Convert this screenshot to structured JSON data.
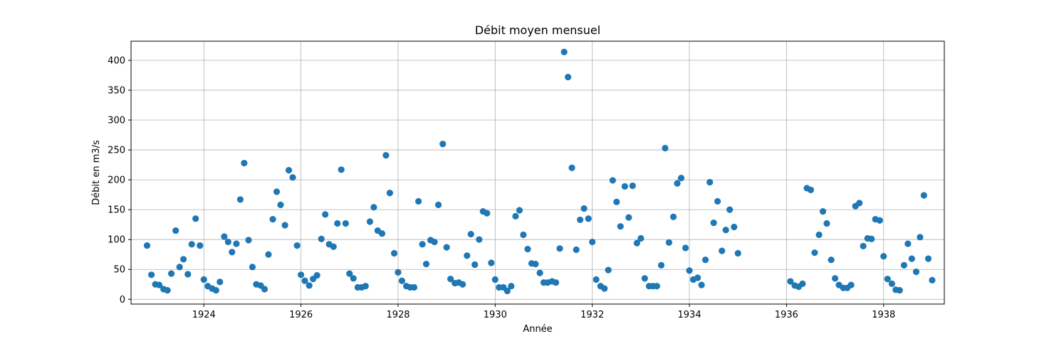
{
  "chart_data": {
    "type": "scatter",
    "title": "Débit moyen mensuel",
    "xlabel": "Année",
    "ylabel": "Débit en m3/s",
    "xlim": [
      1922.5,
      1939.25
    ],
    "ylim": [
      -8,
      432
    ],
    "x_ticks": [
      1924,
      1926,
      1928,
      1930,
      1932,
      1934,
      1936,
      1938
    ],
    "y_ticks": [
      0,
      50,
      100,
      150,
      200,
      250,
      300,
      350,
      400
    ],
    "grid": true,
    "marker_color": "#1f77b4",
    "series": [
      {
        "x": [
          1922.83,
          1922.92,
          1923.0,
          1923.08,
          1923.17,
          1923.25,
          1923.33,
          1923.42,
          1923.5,
          1923.58,
          1923.67,
          1923.75,
          1923.83,
          1923.92,
          1924.0,
          1924.08,
          1924.17,
          1924.25,
          1924.33,
          1924.42,
          1924.5,
          1924.58,
          1924.67,
          1924.75,
          1924.83,
          1924.92,
          1925.0,
          1925.08,
          1925.17,
          1925.25,
          1925.33,
          1925.42,
          1925.5,
          1925.58,
          1925.67,
          1925.75,
          1925.83,
          1925.92,
          1926.0,
          1926.08,
          1926.17,
          1926.25,
          1926.33,
          1926.42,
          1926.5,
          1926.58,
          1926.67,
          1926.75,
          1926.83,
          1926.92,
          1927.0,
          1927.08,
          1927.17,
          1927.25,
          1927.33,
          1927.42,
          1927.5,
          1927.58,
          1927.67,
          1927.75,
          1927.83,
          1927.92,
          1928.0,
          1928.08,
          1928.17,
          1928.25,
          1928.33,
          1928.42,
          1928.5,
          1928.58,
          1928.67,
          1928.75,
          1928.83,
          1928.92,
          1929.0,
          1929.08,
          1929.17,
          1929.25,
          1929.33,
          1929.42,
          1929.5,
          1929.58,
          1929.67,
          1929.75,
          1929.83,
          1929.92,
          1930.0,
          1930.08,
          1930.17,
          1930.25,
          1930.33,
          1930.42,
          1930.5,
          1930.58,
          1930.67,
          1930.75,
          1930.83,
          1930.92,
          1931.0,
          1931.08,
          1931.17,
          1931.25,
          1931.33,
          1931.42,
          1931.5,
          1931.58,
          1931.67,
          1931.75,
          1931.83,
          1931.92,
          1932.0,
          1932.08,
          1932.17,
          1932.25,
          1932.33,
          1932.42,
          1932.5,
          1932.58,
          1932.67,
          1932.75,
          1932.83,
          1932.92,
          1933.0,
          1933.08,
          1933.17,
          1933.25,
          1933.33,
          1933.42,
          1933.5,
          1933.58,
          1933.67,
          1933.75,
          1933.83,
          1933.92,
          1934.0,
          1934.08,
          1934.17,
          1934.25,
          1934.33,
          1934.42,
          1934.5,
          1934.58,
          1934.67,
          1934.75,
          1934.83,
          1934.92,
          1935.0,
          1936.08,
          1936.17,
          1936.25,
          1936.33,
          1936.42,
          1936.5,
          1936.58,
          1936.67,
          1936.75,
          1936.83,
          1936.92,
          1937.0,
          1937.08,
          1937.17,
          1937.25,
          1937.33,
          1937.42,
          1937.5,
          1937.58,
          1937.67,
          1937.75,
          1937.83,
          1937.92,
          1938.0,
          1938.08,
          1938.17,
          1938.25,
          1938.33,
          1938.42,
          1938.5,
          1938.58,
          1938.67,
          1938.75,
          1938.83,
          1938.92,
          1939.0
        ],
        "y": [
          90,
          41,
          25,
          24,
          17,
          15,
          43,
          115,
          54,
          67,
          42,
          92,
          135,
          90,
          33,
          22,
          18,
          15,
          29,
          105,
          96,
          79,
          93,
          167,
          228,
          99,
          54,
          25,
          23,
          17,
          75,
          134,
          180,
          158,
          124,
          216,
          204,
          90,
          41,
          31,
          23,
          34,
          40,
          101,
          142,
          92,
          88,
          127,
          217,
          127,
          43,
          35,
          20,
          20,
          22,
          130,
          154,
          115,
          110,
          241,
          178,
          77,
          45,
          31,
          22,
          20,
          20,
          164,
          92,
          59,
          99,
          96,
          158,
          260,
          87,
          34,
          27,
          28,
          25,
          73,
          109,
          58,
          100,
          147,
          144,
          61,
          33,
          20,
          20,
          14,
          22,
          139,
          149,
          108,
          84,
          60,
          59,
          44,
          28,
          28,
          30,
          28,
          85,
          414,
          372,
          220,
          83,
          133,
          152,
          135,
          96,
          33,
          22,
          18,
          49,
          199,
          163,
          122,
          189,
          137,
          190,
          94,
          102,
          35,
          22,
          22,
          22,
          57,
          253,
          95,
          138,
          194,
          203,
          86,
          48,
          33,
          36,
          24,
          66,
          196,
          128,
          164,
          81,
          116,
          150,
          121,
          77,
          30,
          23,
          21,
          26,
          186,
          183,
          78,
          108,
          147,
          127,
          66,
          35,
          24,
          19,
          19,
          24,
          156,
          161,
          89,
          102,
          101,
          134,
          132,
          72,
          34,
          26,
          16,
          15,
          57,
          93,
          68,
          46,
          104,
          174,
          68,
          32
        ]
      }
    ]
  }
}
